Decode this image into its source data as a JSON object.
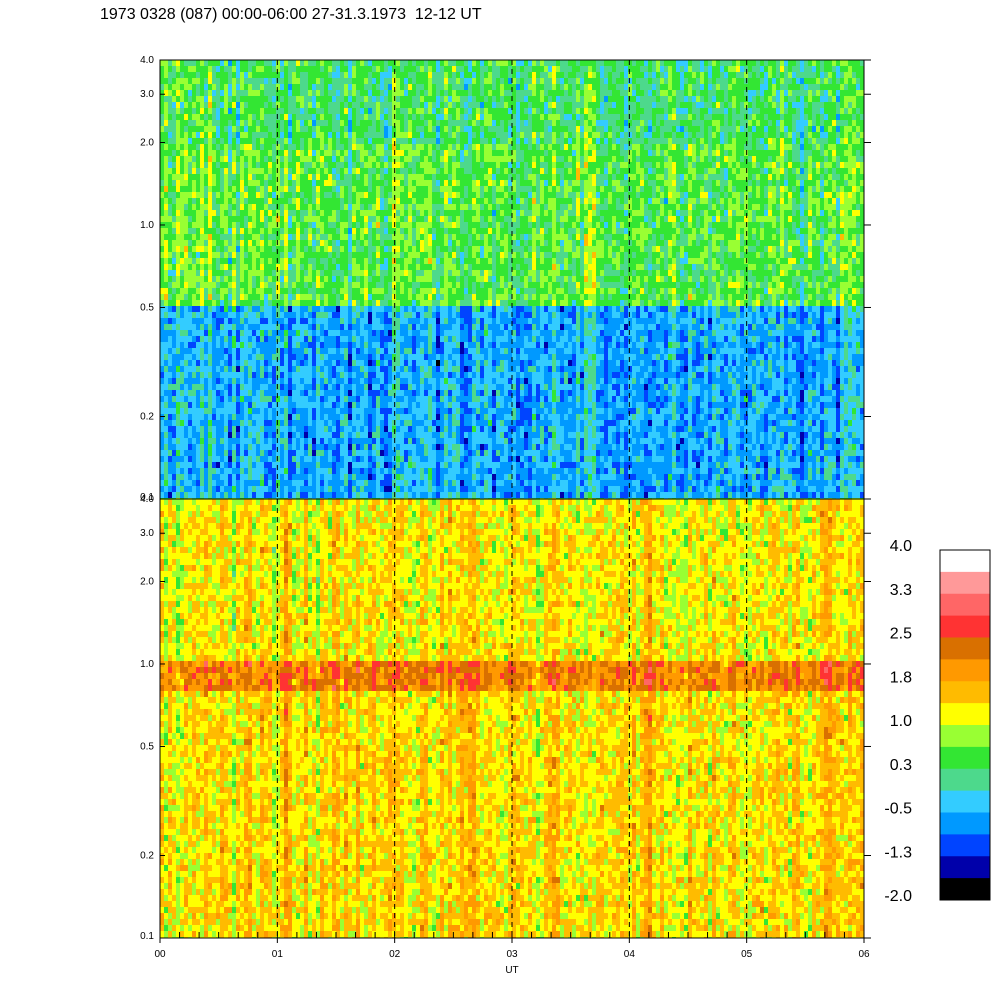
{
  "figure": {
    "title": "1973 0328 (087) 00:00-06:00 27-31.3.1973  12-12 UT"
  },
  "chart_data": [
    {
      "type": "heatmap",
      "panel": "upper",
      "title": "",
      "xlabel": "",
      "ylabel": "",
      "y_scale": "log",
      "ylim": [
        0.1,
        4.0
      ],
      "yticks": [
        0.1,
        0.2,
        0.5,
        1.0,
        2.0,
        3.0,
        4.0
      ],
      "ytick_labels": [
        "0.1",
        "0.2",
        "0.5",
        "1.0",
        "2.0",
        "3.0",
        "4.0"
      ],
      "xlim": [
        0,
        6
      ],
      "vertical_dashed_lines_at": [
        1,
        2,
        3,
        4,
        5
      ],
      "dominant_levels_by_band": [
        {
          "range": [
            2.0,
            4.0
          ],
          "level": 0.3
        },
        {
          "range": [
            0.5,
            2.0
          ],
          "level": 0.5
        },
        {
          "range": [
            0.1,
            0.5
          ],
          "level": -0.5
        }
      ]
    },
    {
      "type": "heatmap",
      "panel": "lower",
      "title": "",
      "xlabel": "UT",
      "ylabel": "",
      "y_scale": "log",
      "ylim": [
        0.1,
        4.0
      ],
      "yticks": [
        0.1,
        0.2,
        0.5,
        1.0,
        2.0,
        3.0,
        4.0
      ],
      "ytick_labels": [
        "0.1",
        "0.2",
        "0.5",
        "1.0",
        "2.0",
        "3.0",
        "4.0"
      ],
      "xlim": [
        0,
        6
      ],
      "xticks": [
        0,
        1,
        2,
        3,
        4,
        5,
        6
      ],
      "xtick_labels": [
        "00",
        "01",
        "02",
        "03",
        "04",
        "05",
        "06"
      ],
      "vertical_dashed_lines_at": [
        1,
        2,
        3,
        4,
        5
      ],
      "band_feature": {
        "range": [
          0.8,
          1.0
        ],
        "level": 2.2
      },
      "dominant_levels_by_band": [
        {
          "range": [
            1.0,
            4.0
          ],
          "level": 1.3
        },
        {
          "range": [
            0.1,
            0.8
          ],
          "level": 1.4
        }
      ]
    }
  ],
  "colorbar": {
    "labels": [
      "4.0",
      "3.3",
      "2.5",
      "1.8",
      "1.0",
      "0.3",
      "-0.5",
      "-1.3",
      "-2.0"
    ],
    "colors": [
      "#ffffff",
      "#ff9999",
      "#ff6666",
      "#ff3333",
      "#d97000",
      "#ff9900",
      "#ffbb00",
      "#ffff00",
      "#99ff33",
      "#33e633",
      "#4dd98c",
      "#33ccff",
      "#0099ff",
      "#0044ff",
      "#0000aa",
      "#000000"
    ]
  }
}
